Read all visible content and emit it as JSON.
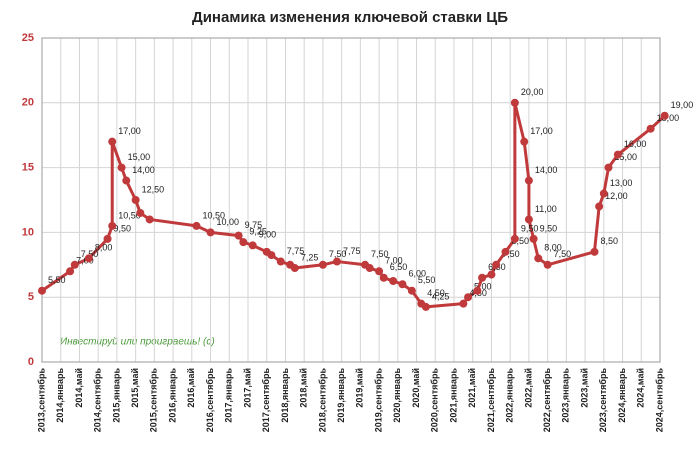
{
  "chart_data": {
    "type": "line",
    "title": "Динамика изменения ключевой ставки ЦБ",
    "annotation": "Инвестируй или проиграешь! (c)",
    "color": "#c0393b",
    "grid": true,
    "x": [
      "2013-09",
      "2014-03",
      "2014-04",
      "2014-07",
      "2014-11",
      "2014-12",
      "2014-12",
      "2015-02",
      "2015-03",
      "2015-05",
      "2015-06",
      "2015-08",
      "2016-06",
      "2016-09",
      "2017-03",
      "2017-04",
      "2017-06",
      "2017-09",
      "2017-10",
      "2017-12",
      "2018-02",
      "2018-03",
      "2018-09",
      "2018-12",
      "2019-06",
      "2019-07",
      "2019-09",
      "2019-10",
      "2019-12",
      "2020-02",
      "2020-04",
      "2020-06",
      "2020-07",
      "2021-03",
      "2021-04",
      "2021-06",
      "2021-07",
      "2021-09",
      "2021-10",
      "2021-12",
      "2022-02",
      "2022-02",
      "2022-04",
      "2022-05",
      "2022-05",
      "2022-06",
      "2022-07",
      "2022-09",
      "2023-07",
      "2023-08",
      "2023-09",
      "2023-10",
      "2023-12",
      "2024-07",
      "2024-10"
    ],
    "values": [
      5.5,
      7,
      7.5,
      8,
      9.5,
      10.5,
      17,
      15,
      14,
      12.5,
      11.5,
      11,
      10.5,
      10,
      9.75,
      9.25,
      9,
      8.5,
      8.25,
      7.75,
      7.5,
      7.25,
      7.5,
      7.75,
      7.5,
      7.25,
      7,
      6.5,
      6.25,
      6,
      5.5,
      4.5,
      4.25,
      4.5,
      5,
      5.5,
      6.5,
      6.75,
      7.5,
      8.5,
      9.5,
      20,
      17,
      14,
      11,
      9.5,
      8,
      7.5,
      8.5,
      12,
      13,
      15,
      16,
      18,
      19
    ],
    "value_labels": [
      "5,50",
      "7,00",
      "7,50",
      "8,00",
      "9,50",
      "10,50",
      "17,00",
      "15,00",
      "14,00",
      "12,50",
      null,
      null,
      "10,50",
      "10,00",
      "9,75",
      "9,25",
      "9,00",
      null,
      null,
      "7,75",
      null,
      "7,25",
      "7,50",
      "7,75",
      "7,50",
      null,
      "7,00",
      "6,50",
      null,
      "6,00",
      "5,50",
      "4,50",
      "4,25",
      "4,50",
      "5,00",
      null,
      "6,50",
      null,
      "7,50",
      "8,50",
      "9,50",
      "20,00",
      "17,00",
      "14,00",
      "11,00",
      "9,50",
      "8,00",
      "7,50",
      "8,50",
      "12,00",
      "13,00",
      "15,00",
      "16,00",
      "18,00",
      "19,00"
    ],
    "xlim": [
      "2013-09",
      "2024-09"
    ],
    "xticks": [
      {
        "value": "2013-09",
        "label": "2013,сентябрь"
      },
      {
        "value": "2014-01",
        "label": "2014,январь"
      },
      {
        "value": "2014-05",
        "label": "2014,май"
      },
      {
        "value": "2014-09",
        "label": "2014,сентябрь"
      },
      {
        "value": "2015-01",
        "label": "2015,январь"
      },
      {
        "value": "2015-05",
        "label": "2015,май"
      },
      {
        "value": "2015-09",
        "label": "2015,сентябрь"
      },
      {
        "value": "2016-01",
        "label": "2016,январь"
      },
      {
        "value": "2016-05",
        "label": "2016,май"
      },
      {
        "value": "2016-09",
        "label": "2016,сентябрь"
      },
      {
        "value": "2017-01",
        "label": "2017,январь"
      },
      {
        "value": "2017-05",
        "label": "2017,май"
      },
      {
        "value": "2017-09",
        "label": "2017,сентябрь"
      },
      {
        "value": "2018-01",
        "label": "2018,январь"
      },
      {
        "value": "2018-05",
        "label": "2018,май"
      },
      {
        "value": "2018-09",
        "label": "2018,сентябрь"
      },
      {
        "value": "2019-01",
        "label": "2019,январь"
      },
      {
        "value": "2019-05",
        "label": "2019,май"
      },
      {
        "value": "2019-09",
        "label": "2019,сентябрь"
      },
      {
        "value": "2020-01",
        "label": "2020,январь"
      },
      {
        "value": "2020-05",
        "label": "2020,май"
      },
      {
        "value": "2020-09",
        "label": "2020,сентябрь"
      },
      {
        "value": "2021-01",
        "label": "2021,январь"
      },
      {
        "value": "2021-05",
        "label": "2021,май"
      },
      {
        "value": "2021-09",
        "label": "2021,сентябрь"
      },
      {
        "value": "2022-01",
        "label": "2022,январь"
      },
      {
        "value": "2022-05",
        "label": "2022,май"
      },
      {
        "value": "2022-09",
        "label": "2022,сентябрь"
      },
      {
        "value": "2023-01",
        "label": "2023,январь"
      },
      {
        "value": "2023-05",
        "label": "2023,май"
      },
      {
        "value": "2023-09",
        "label": "2023,сентябрь"
      },
      {
        "value": "2024-01",
        "label": "2024,январь"
      },
      {
        "value": "2024-05",
        "label": "2024,май"
      },
      {
        "value": "2024-09",
        "label": "2024,сентябрь"
      }
    ],
    "ylim": [
      0,
      25
    ],
    "yticks": [
      0,
      5,
      10,
      15,
      20,
      25
    ]
  }
}
